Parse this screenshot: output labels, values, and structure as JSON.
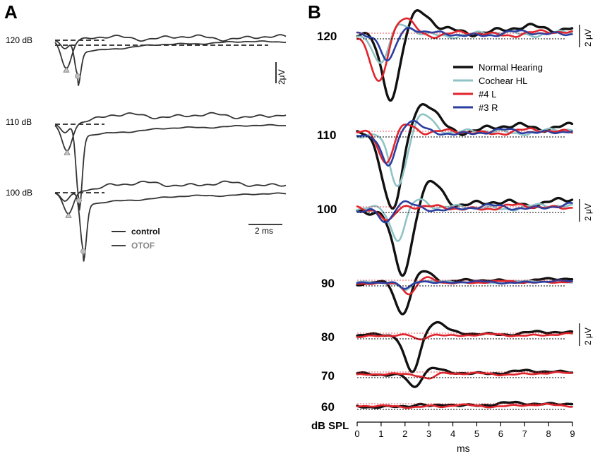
{
  "chart_data": [
    {
      "panel": "A",
      "type": "line",
      "title": "",
      "levels": [
        "120 dB",
        "110 dB",
        "100 dB"
      ],
      "legend": [
        {
          "label": "control",
          "color": "#333333"
        },
        {
          "label": "OTOF",
          "color": "#888888"
        }
      ],
      "scale_bars": {
        "time": "2 ms",
        "amplitude": "2μV"
      },
      "markers": {
        "control": "triangle",
        "OTOF": "circle"
      }
    },
    {
      "panel": "B",
      "type": "line",
      "title": "",
      "xlabel": "ms",
      "ylabel": "dB SPL",
      "xlim": [
        0,
        9
      ],
      "x_ticks": [
        "0",
        "1",
        "2",
        "3",
        "4",
        "5",
        "6",
        "7",
        "8",
        "9"
      ],
      "levels": [
        "120",
        "110",
        "100",
        "90",
        "80",
        "70",
        "60"
      ],
      "legend": [
        {
          "label": "Normal Hearing",
          "color": "#111111"
        },
        {
          "label": "Cochear HL",
          "color": "#8fc3c6"
        },
        {
          "label": "#4 L",
          "color": "#e0242c"
        },
        {
          "label": "#3 R",
          "color": "#2a3ea0"
        }
      ],
      "scale_bars": [
        "2 μV",
        "2 μV",
        "2 μV"
      ],
      "peak_latency_ms": {
        "Normal Hearing": {
          "120": 1.4,
          "110": 1.5,
          "100": 1.9,
          "90": 1.9,
          "80": 2.3,
          "70": 2.4,
          "60": 3.1
        },
        "Cochear HL": {
          "120": 1.0,
          "110": 1.7,
          "100": 1.7,
          "90": 2.0
        },
        "#4 L": {
          "120": 0.9,
          "110": 1.2,
          "100": 1.3,
          "90": 2.2,
          "80": 2.6,
          "70": 3.0,
          "60": 3.6
        },
        "#3 R": {
          "120": 1.3,
          "110": 1.3,
          "100": 1.2,
          "90": 2.0
        }
      },
      "peak_amplitude_uV": {
        "Normal Hearing": {
          "120": -5.5,
          "110": -6.7,
          "100": -6.2,
          "90": -2.9,
          "80": -3.3,
          "70": -1.1,
          "60": -0.2
        },
        "Cochear HL": {
          "120": -2.4,
          "110": -4.8,
          "100": -2.8,
          "90": -0.6
        },
        "#4 L": {
          "120": -4.4,
          "110": -2.6,
          "100": -1.0,
          "90": -1.1,
          "80": -0.4,
          "70": -0.3,
          "60": -0.1
        },
        "#3 R": {
          "120": -2.2,
          "110": -2.8,
          "100": -1.2,
          "90": -0.6
        }
      }
    }
  ]
}
